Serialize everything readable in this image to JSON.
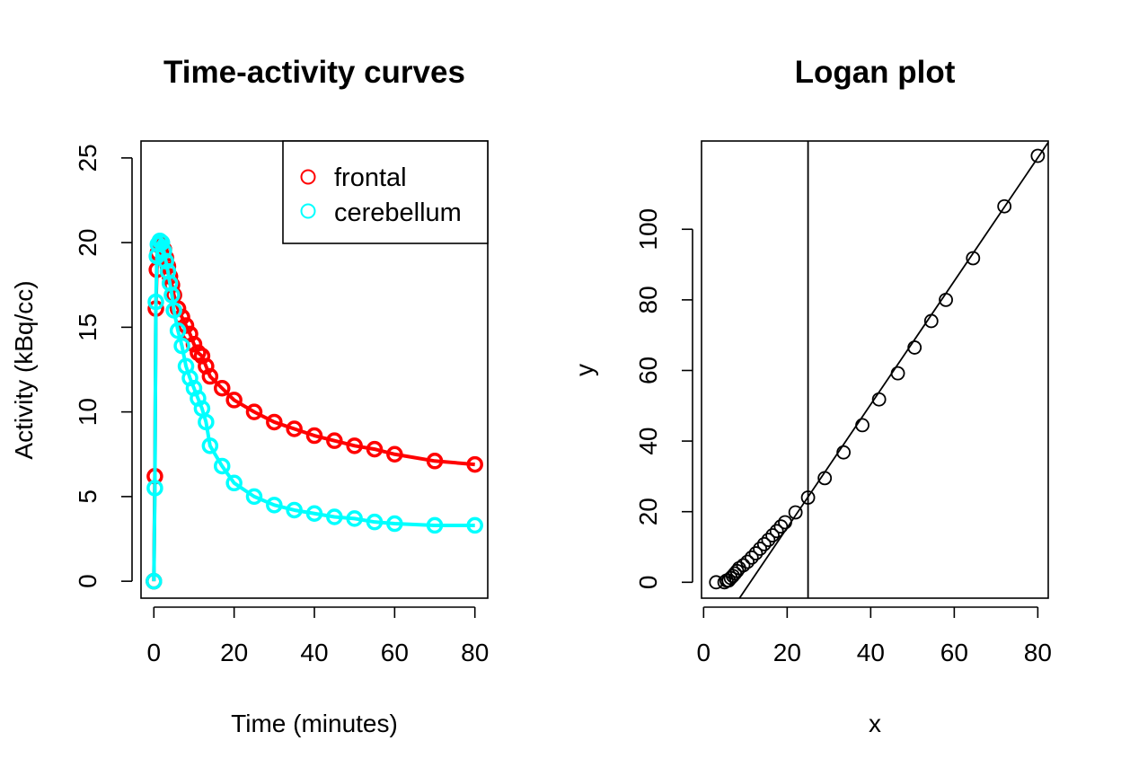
{
  "chart_data": [
    {
      "type": "line",
      "title": "Time-activity curves",
      "xlabel": "Time (minutes)",
      "ylabel": "Activity (kBq/cc)",
      "xlim": [
        -3.2,
        83.2
      ],
      "ylim": [
        -1,
        26
      ],
      "xticks": [
        0,
        20,
        40,
        60,
        80
      ],
      "yticks": [
        0,
        5,
        10,
        15,
        20,
        25
      ],
      "xtick_labels": [
        "0",
        "20",
        "40",
        "60",
        "80"
      ],
      "ytick_labels": [
        "0",
        "5",
        "10",
        "15",
        "20",
        "25"
      ],
      "legend_position": "top-right",
      "x": [
        0,
        0.25,
        0.5,
        0.75,
        1,
        1.5,
        2,
        2.5,
        3,
        3.5,
        4,
        4.5,
        5,
        6,
        7,
        8,
        9,
        10,
        11,
        12,
        13,
        14,
        17,
        20,
        25,
        30,
        35,
        40,
        45,
        50,
        55,
        60,
        70,
        80
      ],
      "series": [
        {
          "name": "frontal",
          "color": "#ff0000",
          "values": [
            0,
            6.2,
            16.1,
            18.4,
            19.4,
            19.8,
            19.9,
            19.6,
            19.1,
            18.6,
            18.0,
            17.5,
            16.9,
            16.1,
            15.6,
            15.1,
            14.6,
            14.0,
            13.5,
            13.3,
            12.7,
            12.1,
            11.4,
            10.7,
            10.0,
            9.4,
            9.0,
            8.6,
            8.3,
            8.0,
            7.8,
            7.5,
            7.1,
            6.9
          ]
        },
        {
          "name": "cerebellum",
          "color": "#00ffff",
          "values": [
            0,
            5.5,
            16.5,
            19.2,
            19.9,
            20.1,
            20.0,
            19.5,
            18.9,
            18.3,
            17.6,
            16.9,
            16.0,
            14.8,
            13.9,
            12.7,
            12.0,
            11.4,
            10.8,
            10.2,
            9.4,
            8.0,
            6.8,
            5.8,
            5.0,
            4.5,
            4.2,
            4.0,
            3.8,
            3.7,
            3.5,
            3.4,
            3.3,
            3.3
          ]
        }
      ]
    },
    {
      "type": "scatter",
      "title": "Logan plot",
      "xlabel": "x",
      "ylabel": "y",
      "xlim": [
        -0.5,
        82.5
      ],
      "ylim": [
        -4.5,
        125
      ],
      "xticks": [
        0,
        20,
        40,
        60,
        80
      ],
      "yticks": [
        0,
        20,
        40,
        60,
        80,
        100
      ],
      "xtick_labels": [
        "0",
        "20",
        "40",
        "60",
        "80"
      ],
      "ytick_labels": [
        "0",
        "20",
        "40",
        "60",
        "80",
        "100"
      ],
      "vline_x": 25,
      "fit_line": {
        "slope": 1.747,
        "intercept": -19.5
      },
      "points": {
        "x": [
          3,
          5,
          5.5,
          6,
          6.5,
          7,
          7.5,
          8,
          8.5,
          9.5,
          10.5,
          11.5,
          12.5,
          13.5,
          14.5,
          15.5,
          16.5,
          17.5,
          18.5,
          19.5,
          22,
          25,
          29,
          33.5,
          38,
          42,
          46.5,
          50.5,
          54.5,
          58,
          64.5,
          72,
          80
        ],
        "y": [
          0,
          0,
          0.5,
          0.5,
          1.2,
          1.8,
          2.5,
          3.2,
          4.0,
          4.8,
          5.8,
          7.0,
          8.2,
          9.5,
          10.8,
          12.0,
          13.3,
          14.5,
          15.8,
          17.0,
          19.8,
          24.0,
          29.5,
          36.8,
          44.5,
          51.8,
          59.2,
          66.5,
          74.0,
          80.0,
          91.8,
          106.5,
          120.8
        ]
      }
    }
  ]
}
